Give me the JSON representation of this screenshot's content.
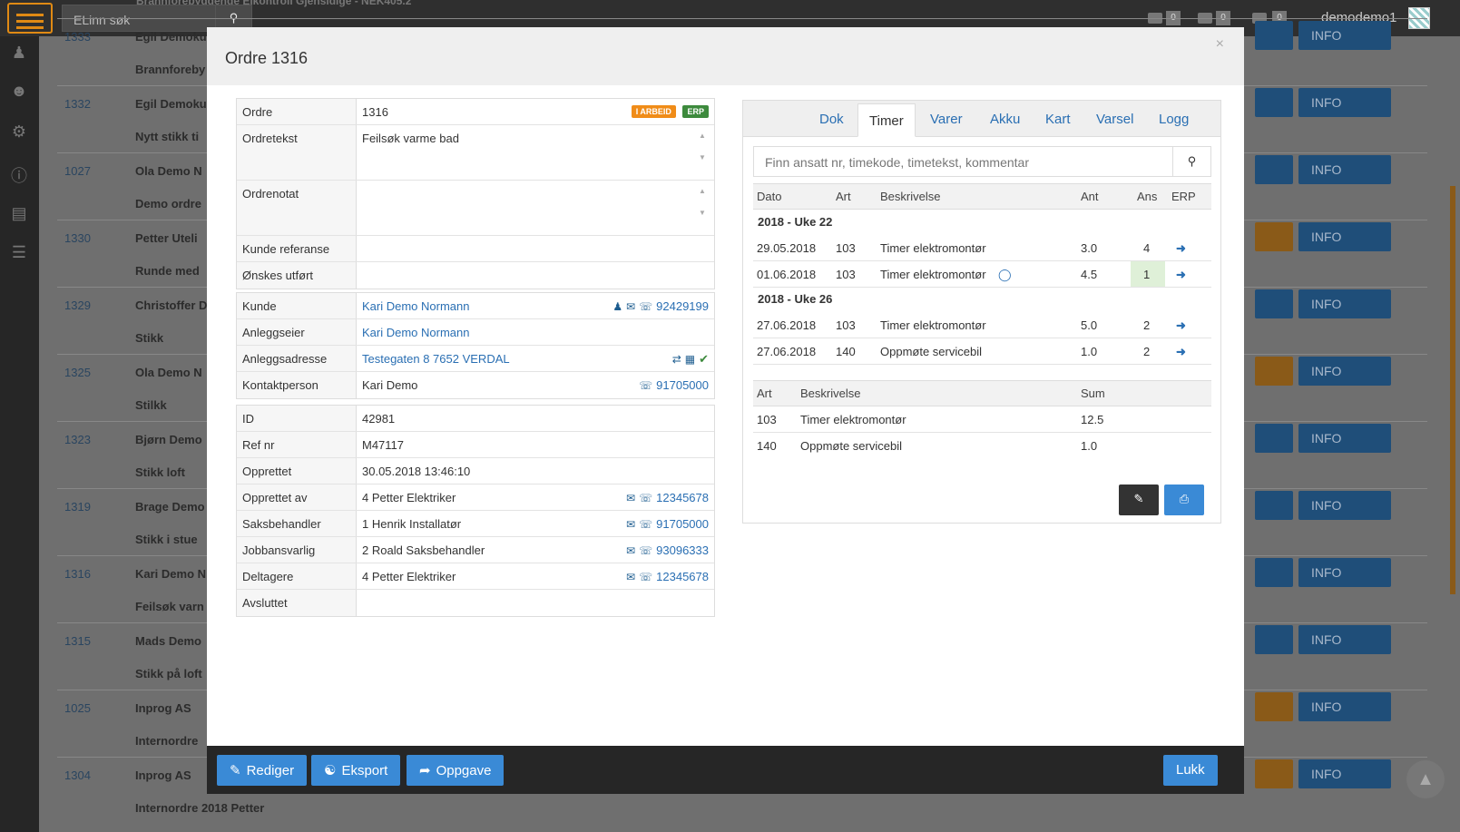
{
  "app": {
    "search_placeholder": "ELinn søk",
    "username": "demodemo1",
    "counts": [
      "0",
      "0",
      "0"
    ],
    "bg_title": "Brannforebyggende Elkontroll Gjensidige - NEK405.2"
  },
  "bg_rows": [
    {
      "id": "1333",
      "name": "Egil Demoku",
      "sub": "Brannforeby"
    },
    {
      "id": "1332",
      "name": "Egil Demoku",
      "sub": "Nytt stikk ti"
    },
    {
      "id": "1027",
      "name": "Ola Demo N",
      "sub": "Demo ordre"
    },
    {
      "id": "1330",
      "name": "Petter Uteli",
      "sub": "Runde med"
    },
    {
      "id": "1329",
      "name": "Christoffer D",
      "sub": "Stikk"
    },
    {
      "id": "1325",
      "name": "Ola Demo N",
      "sub": "Stilkk"
    },
    {
      "id": "1323",
      "name": "Bjørn Demo",
      "sub": "Stikk loft"
    },
    {
      "id": "1319",
      "name": "Brage Demo",
      "sub": "Stikk i stue"
    },
    {
      "id": "1316",
      "name": "Kari Demo N",
      "sub": "Feilsøk varn"
    },
    {
      "id": "1315",
      "name": "Mads Demo",
      "sub": "Stikk på loft"
    },
    {
      "id": "1025",
      "name": "Inprog AS",
      "sub": "Internordre"
    },
    {
      "id": "1304",
      "name": "Inprog AS",
      "sub": "Internordre 2018 Petter"
    }
  ],
  "bg_info_label": "INFO",
  "modal": {
    "title": "Ordre 1316",
    "close": "×",
    "footer": {
      "edit": "Rediger",
      "export": "Eksport",
      "task": "Oppgave",
      "close": "Lukk"
    }
  },
  "order": {
    "ordre_label": "Ordre",
    "ordre": "1316",
    "tag_status": "I ARBEID",
    "tag_erp": "ERP",
    "ordretekst_label": "Ordretekst",
    "ordretekst": "Feilsøk varme bad",
    "ordrenotat_label": "Ordrenotat",
    "ordrenotat": "",
    "kunde_ref_label": "Kunde referanse",
    "kunde_ref": "",
    "onskes_label": "Ønskes utført",
    "onskes": ""
  },
  "customer": {
    "kunde_label": "Kunde",
    "kunde": "Kari Demo Normann",
    "kunde_phone": "92429199",
    "anleggseier_label": "Anleggseier",
    "anleggseier": "Kari Demo Normann",
    "adresse_label": "Anleggsadresse",
    "adresse": "Testegaten 8 7652 VERDAL",
    "kontakt_label": "Kontaktperson",
    "kontakt": "Kari Demo",
    "kontakt_phone": "91705000"
  },
  "meta": {
    "id_label": "ID",
    "id": "42981",
    "ref_label": "Ref nr",
    "ref": "M47117",
    "opprettet_label": "Opprettet",
    "opprettet": "30.05.2018 13:46:10",
    "oppr_av_label": "Opprettet av",
    "oppr_av": "4 Petter Elektriker",
    "oppr_av_phone": "12345678",
    "saks_label": "Saksbehandler",
    "saks": "1 Henrik Installatør",
    "saks_phone": "91705000",
    "jobb_label": "Jobbansvarlig",
    "jobb": "2 Roald Saksbehandler",
    "jobb_phone": "93096333",
    "delt_label": "Deltagere",
    "delt": "4 Petter Elektriker",
    "delt_phone": "12345678",
    "avsl_label": "Avsluttet",
    "avsl": ""
  },
  "tabs": [
    "Dok",
    "Timer",
    "Varer",
    "Akku",
    "Kart",
    "Varsel",
    "Logg"
  ],
  "timer": {
    "search_placeholder": "Finn ansatt nr, timekode, timetekst, kommentar",
    "headers": {
      "dato": "Dato",
      "art": "Art",
      "beskrivelse": "Beskrivelse",
      "ant": "Ant",
      "ans": "Ans",
      "erp": "ERP"
    },
    "weeks": [
      {
        "label": "2018 - Uke 22",
        "rows": [
          {
            "dato": "29.05.2018",
            "art": "103",
            "besk": "Timer elektromontør",
            "ant": "3.0",
            "ans": "4"
          },
          {
            "dato": "01.06.2018",
            "art": "103",
            "besk": "Timer elektromontør",
            "ant": "4.5",
            "ans": "1"
          }
        ]
      },
      {
        "label": "2018 - Uke 26",
        "rows": [
          {
            "dato": "27.06.2018",
            "art": "103",
            "besk": "Timer elektromontør",
            "ant": "5.0",
            "ans": "2"
          },
          {
            "dato": "27.06.2018",
            "art": "140",
            "besk": "Oppmøte servicebil",
            "ant": "1.0",
            "ans": "2"
          }
        ]
      }
    ],
    "sum_headers": {
      "art": "Art",
      "beskrivelse": "Beskrivelse",
      "sum": "Sum"
    },
    "sums": [
      {
        "art": "103",
        "besk": "Timer elektromontør",
        "sum": "12.5"
      },
      {
        "art": "140",
        "besk": "Oppmøte servicebil",
        "sum": "1.0"
      }
    ]
  }
}
